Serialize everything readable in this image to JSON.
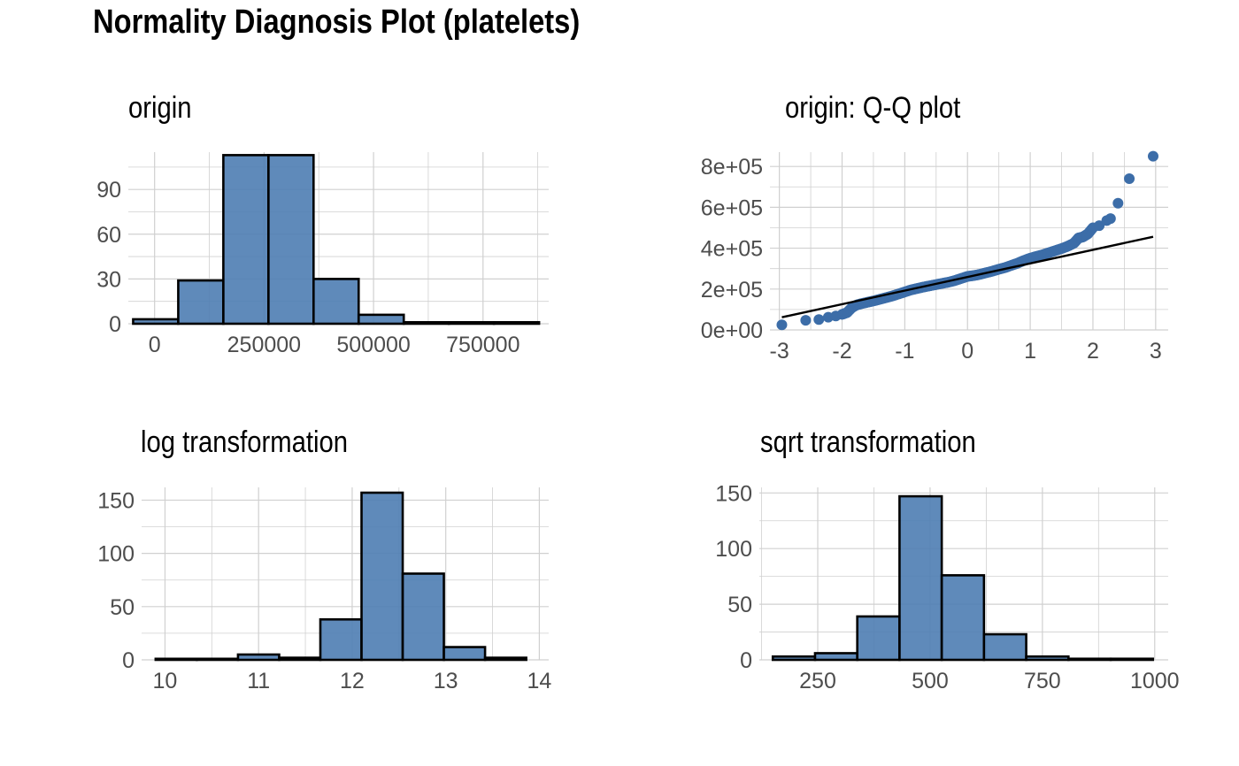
{
  "title": "Normality Diagnosis Plot (platelets)",
  "colors": {
    "fill": "#4E7DB3",
    "point": "#3C6DA8",
    "stroke": "#000000",
    "grid": "#D0D0D0",
    "tick_text": "#4D4D4D"
  },
  "chart_data": [
    {
      "id": "origin",
      "type": "bar",
      "title": "origin",
      "xlim": [
        -60000,
        900000
      ],
      "ylim": [
        0,
        115
      ],
      "x_ticks": [
        0,
        250000,
        500000,
        750000
      ],
      "x_tick_labels": [
        "0",
        "250000",
        "500000",
        "750000"
      ],
      "y_ticks": [
        0,
        30,
        60,
        90
      ],
      "y_tick_labels": [
        "0",
        "30",
        "60",
        "90"
      ],
      "bins": [
        {
          "x0": -49000,
          "x1": 54000,
          "value": 3
        },
        {
          "x0": 54000,
          "x1": 157000,
          "value": 29
        },
        {
          "x0": 157000,
          "x1": 260000,
          "value": 113
        },
        {
          "x0": 260000,
          "x1": 363000,
          "value": 113
        },
        {
          "x0": 363000,
          "x1": 466000,
          "value": 30
        },
        {
          "x0": 466000,
          "x1": 569000,
          "value": 6
        },
        {
          "x0": 569000,
          "x1": 672000,
          "value": 1
        },
        {
          "x0": 672000,
          "x1": 775000,
          "value": 1
        },
        {
          "x0": 775000,
          "x1": 878000,
          "value": 1
        }
      ]
    },
    {
      "id": "qq",
      "type": "scatter",
      "title": "origin: Q-Q plot",
      "xlim": [
        -3.15,
        3.2
      ],
      "ylim": [
        0,
        870000
      ],
      "x_ticks": [
        -3,
        -2,
        -1,
        0,
        1,
        2,
        3
      ],
      "x_tick_labels": [
        "-3",
        "-2",
        "-1",
        "0",
        "1",
        "2",
        "3"
      ],
      "y_ticks": [
        0,
        200000,
        400000,
        600000,
        800000
      ],
      "y_tick_labels": [
        "0e+00",
        "2e+05",
        "4e+05",
        "6e+05",
        "8e+05"
      ],
      "reference_line": {
        "x": [
          -2.96,
          2.96
        ],
        "y": [
          62000,
          456000
        ]
      },
      "points": {
        "x": [
          -2.96,
          -2.58,
          -2.37,
          -2.22,
          -2.1,
          -2.0,
          -1.92,
          -1.84,
          -1.77,
          -1.7,
          -1.6,
          -1.5,
          -1.4,
          -1.3,
          -1.2,
          -1.1,
          -1.0,
          -0.9,
          -0.8,
          -0.7,
          -0.6,
          -0.5,
          -0.4,
          -0.3,
          -0.2,
          -0.1,
          0.0,
          0.1,
          0.2,
          0.3,
          0.4,
          0.5,
          0.6,
          0.7,
          0.8,
          0.9,
          1.0,
          1.1,
          1.2,
          1.3,
          1.4,
          1.5,
          1.6,
          1.7,
          1.77,
          1.84,
          1.92,
          2.0,
          2.1,
          2.22,
          2.28,
          2.4,
          2.58,
          2.96
        ],
        "y": [
          25000,
          47000,
          51000,
          62000,
          68000,
          76000,
          85000,
          110000,
          122000,
          128000,
          135000,
          142000,
          150000,
          158000,
          166000,
          176000,
          186000,
          196000,
          203000,
          210000,
          216000,
          222000,
          228000,
          234000,
          242000,
          252000,
          262000,
          266000,
          272000,
          280000,
          288000,
          297000,
          305000,
          316000,
          327000,
          340000,
          351000,
          360000,
          368000,
          378000,
          388000,
          398000,
          410000,
          425000,
          450000,
          455000,
          470000,
          500000,
          510000,
          535000,
          545000,
          620000,
          740000,
          850000
        ]
      }
    },
    {
      "id": "log",
      "type": "bar",
      "title": "log transformation",
      "xlim": [
        9.75,
        14.1
      ],
      "ylim": [
        0,
        162
      ],
      "x_ticks": [
        10,
        11,
        12,
        13,
        14
      ],
      "x_tick_labels": [
        "10",
        "11",
        "12",
        "13",
        "14"
      ],
      "y_ticks": [
        0,
        50,
        100,
        150
      ],
      "y_tick_labels": [
        "0",
        "50",
        "100",
        "150"
      ],
      "bins": [
        {
          "x0": 9.9,
          "x1": 10.34,
          "value": 1
        },
        {
          "x0": 10.34,
          "x1": 10.78,
          "value": 1
        },
        {
          "x0": 10.78,
          "x1": 11.22,
          "value": 5
        },
        {
          "x0": 11.22,
          "x1": 11.66,
          "value": 2
        },
        {
          "x0": 11.66,
          "x1": 12.1,
          "value": 38
        },
        {
          "x0": 12.1,
          "x1": 12.54,
          "value": 157
        },
        {
          "x0": 12.54,
          "x1": 12.98,
          "value": 81
        },
        {
          "x0": 12.98,
          "x1": 13.42,
          "value": 12
        },
        {
          "x0": 13.42,
          "x1": 13.86,
          "value": 2
        }
      ]
    },
    {
      "id": "sqrt",
      "type": "bar",
      "title": "sqrt transformation",
      "xlim": [
        120,
        1030
      ],
      "ylim": [
        0,
        155
      ],
      "x_ticks": [
        250,
        500,
        750,
        1000
      ],
      "x_tick_labels": [
        "250",
        "500",
        "750",
        "1000"
      ],
      "y_ticks": [
        0,
        50,
        100,
        150
      ],
      "y_tick_labels": [
        "0",
        "50",
        "100",
        "150"
      ],
      "bins": [
        {
          "x0": 150,
          "x1": 244,
          "value": 3
        },
        {
          "x0": 244,
          "x1": 338,
          "value": 6
        },
        {
          "x0": 338,
          "x1": 432,
          "value": 39
        },
        {
          "x0": 432,
          "x1": 526,
          "value": 147
        },
        {
          "x0": 526,
          "x1": 620,
          "value": 76
        },
        {
          "x0": 620,
          "x1": 714,
          "value": 23
        },
        {
          "x0": 714,
          "x1": 808,
          "value": 3
        },
        {
          "x0": 808,
          "x1": 902,
          "value": 1
        },
        {
          "x0": 902,
          "x1": 996,
          "value": 1
        }
      ]
    }
  ]
}
